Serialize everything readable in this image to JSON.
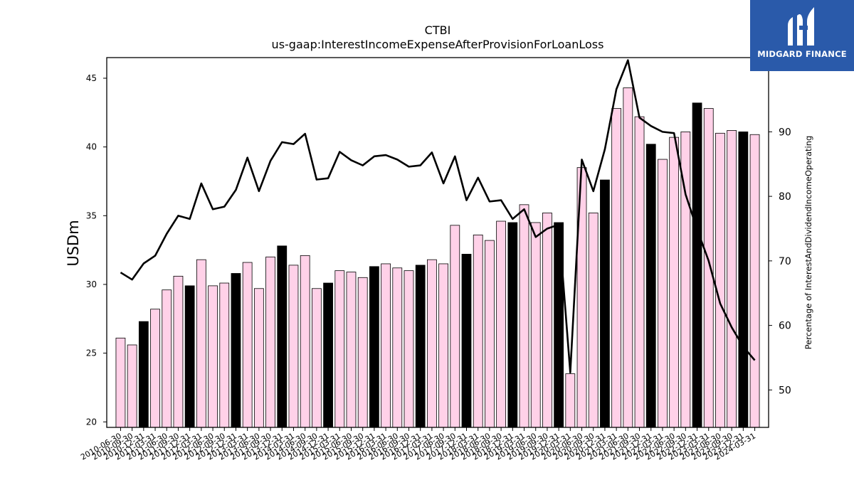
{
  "chart_data": {
    "type": "bar",
    "title": "CTBI",
    "subtitle": "us-gaap:InterestIncomeExpenseAfterProvisionForLoanLoss",
    "ylabel": "USDm",
    "y2label": "Percentage of InterestAndDividendIncomeOperating",
    "ylim": [
      19.6,
      46.5
    ],
    "y2lim": [
      44.2,
      101.5
    ],
    "yticks": [
      20,
      25,
      30,
      35,
      40,
      45
    ],
    "y2ticks": [
      50,
      60,
      70,
      80,
      90,
      100
    ],
    "categories": [
      "2010-06-30",
      "2010-09-30",
      "2010-12-31",
      "2011-03-31",
      "2011-06-30",
      "2011-09-30",
      "2011-12-31",
      "2012-03-31",
      "2012-06-30",
      "2012-09-30",
      "2012-12-31",
      "2013-03-31",
      "2013-06-30",
      "2013-09-30",
      "2013-12-31",
      "2014-03-31",
      "2014-06-30",
      "2014-09-30",
      "2014-12-31",
      "2015-03-31",
      "2015-06-30",
      "2015-09-30",
      "2015-12-31",
      "2016-03-31",
      "2016-06-30",
      "2016-09-30",
      "2016-12-31",
      "2017-03-31",
      "2017-06-30",
      "2017-09-30",
      "2017-12-31",
      "2018-03-31",
      "2018-06-30",
      "2018-09-30",
      "2018-12-31",
      "2019-03-31",
      "2019-06-30",
      "2019-09-30",
      "2019-12-31",
      "2020-03-31",
      "2020-06-30",
      "2020-09-30",
      "2020-12-31",
      "2021-03-31",
      "2021-06-30",
      "2021-09-30",
      "2021-12-31",
      "2022-03-31",
      "2022-06-30",
      "2022-09-30",
      "2022-12-31",
      "2023-03-31",
      "2023-06-30",
      "2023-09-30",
      "2023-12-31",
      "2024-03-31"
    ],
    "series": [
      {
        "type": "bar",
        "values": [
          26.1,
          25.6,
          27.3,
          28.2,
          29.6,
          30.6,
          29.9,
          31.8,
          29.9,
          30.1,
          30.8,
          31.6,
          29.7,
          32.0,
          32.8,
          31.4,
          32.1,
          29.7,
          30.1,
          31.0,
          30.9,
          30.5,
          31.3,
          31.5,
          31.2,
          31.0,
          31.4,
          31.8,
          31.5,
          34.3,
          32.2,
          33.6,
          33.2,
          34.6,
          34.5,
          35.8,
          34.5,
          35.2,
          34.5,
          23.5,
          38.5,
          35.2,
          37.6,
          42.8,
          44.3,
          42.2,
          40.2,
          39.1,
          40.7,
          41.1,
          43.2,
          42.8,
          41.0,
          41.2,
          41.1,
          40.9
        ],
        "highlight": [
          false,
          false,
          true,
          false,
          false,
          false,
          true,
          false,
          false,
          false,
          true,
          false,
          false,
          false,
          true,
          false,
          false,
          false,
          true,
          false,
          false,
          false,
          true,
          false,
          false,
          false,
          true,
          false,
          false,
          false,
          true,
          false,
          false,
          false,
          true,
          false,
          false,
          false,
          true,
          false,
          false,
          false,
          true,
          false,
          false,
          false,
          true,
          false,
          false,
          false,
          true,
          false,
          false,
          false,
          true,
          false
        ],
        "color": "#ffd1e8",
        "highlight_color": "#000000"
      },
      {
        "type": "line",
        "axis": "right",
        "values": [
          68.2,
          67.1,
          69.6,
          70.8,
          74.2,
          77.0,
          76.5,
          82.0,
          78.0,
          78.4,
          81.0,
          86.0,
          80.8,
          85.5,
          88.4,
          88.1,
          89.7,
          82.6,
          82.8,
          86.9,
          85.6,
          84.8,
          86.2,
          86.4,
          85.7,
          84.6,
          84.8,
          86.8,
          82.0,
          86.2,
          79.4,
          82.9,
          79.2,
          79.4,
          76.5,
          78.0,
          73.7,
          75.0,
          75.6,
          52.7,
          85.7,
          80.8,
          87.3,
          96.6,
          101.1,
          92.2,
          90.9,
          90.0,
          89.8,
          80.3,
          74.9,
          70.0,
          63.4,
          59.7,
          56.7,
          54.6
        ],
        "color": "#000000"
      }
    ],
    "grid": false
  },
  "branding": {
    "logo_text": "MIDGARD FINANCE",
    "logo_bg": "#2a5aaa"
  }
}
